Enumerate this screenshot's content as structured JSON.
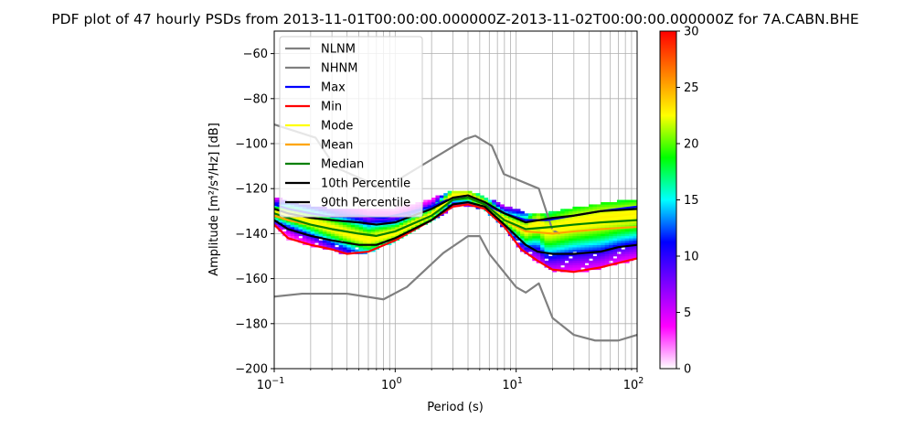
{
  "chart_data": {
    "type": "line",
    "title": "PDF plot of 47 hourly PSDs from 2013-11-01T00:00:00.000000Z-2013-11-02T00:00:00.000000Z for 7A.CABN.BHE",
    "xlabel": "Period (s)",
    "ylabel": "Amplitude [m²/s⁴/Hz] [dB]",
    "xscale": "log",
    "xlim": [
      0.1,
      100
    ],
    "ylim": [
      -200,
      -50
    ],
    "xticks": [
      {
        "value": 0.1,
        "base": "10",
        "exp": "−1"
      },
      {
        "value": 1,
        "base": "10",
        "exp": "0"
      },
      {
        "value": 10,
        "base": "10",
        "exp": "1"
      },
      {
        "value": 100,
        "base": "10",
        "exp": "2"
      }
    ],
    "yticks": [
      -60,
      -80,
      -100,
      -120,
      -140,
      -160,
      -180,
      -200
    ],
    "grid": true,
    "legend_position": "top-left",
    "colorbar": {
      "min": 0,
      "max": 30,
      "ticks": [
        0,
        5,
        10,
        15,
        20,
        25,
        30
      ],
      "colors": [
        "#ffffff",
        "#ff00ff",
        "#8000ff",
        "#0000ff",
        "#00ffff",
        "#00ff00",
        "#ffff00",
        "#ff8000",
        "#ff0000"
      ]
    },
    "series": [
      {
        "name": "NLNM",
        "color": "#808080",
        "x": [
          0.1,
          0.17,
          0.4,
          0.8,
          1.25,
          2.5,
          4.0,
          5.0,
          6.0,
          10,
          12,
          15.4,
          20,
          30,
          45,
          70,
          100
        ],
        "y": [
          -168,
          -166.7,
          -166.7,
          -169.2,
          -163.7,
          -148.6,
          -141.1,
          -141.1,
          -149.0,
          -163.8,
          -166.2,
          -162.1,
          -177.5,
          -185.0,
          -187.5,
          -187.5,
          -185.0
        ]
      },
      {
        "name": "NHNM",
        "color": "#808080",
        "x": [
          0.1,
          0.22,
          0.32,
          0.8,
          3.8,
          4.6,
          6.3,
          7.9,
          15.4,
          20,
          23
        ],
        "y": [
          -91.5,
          -97.4,
          -110.5,
          -120.0,
          -98.0,
          -96.5,
          -101.0,
          -113.5,
          -120.0,
          -138.5,
          -140.0
        ]
      },
      {
        "name": "Max",
        "color": "#0000ff",
        "x": [
          0.1,
          0.13,
          0.2,
          0.3,
          0.5,
          0.8,
          1.2,
          2.0,
          3.0,
          4.0,
          5.5,
          8,
          12,
          18,
          30,
          50,
          100
        ],
        "y": [
          -127,
          -129,
          -131,
          -132.5,
          -132,
          -133,
          -131,
          -128,
          -124,
          -124,
          -127,
          -131,
          -134,
          -134,
          -132,
          -130,
          -128
        ]
      },
      {
        "name": "Min",
        "color": "#ff0000",
        "x": [
          0.1,
          0.13,
          0.2,
          0.3,
          0.4,
          0.6,
          1.0,
          2.0,
          3.0,
          4.0,
          5.5,
          8,
          11,
          15,
          20,
          30,
          50,
          70,
          100
        ],
        "y": [
          -136,
          -142,
          -145,
          -147,
          -149,
          -148,
          -143,
          -134,
          -128,
          -127,
          -129,
          -137,
          -147,
          -152,
          -156,
          -157,
          -155,
          -153,
          -151
        ]
      },
      {
        "name": "Mode",
        "color": "#ffff00",
        "x": [
          0.1,
          0.13,
          0.2,
          0.3,
          0.45,
          0.6,
          1.0,
          2.0,
          3.0,
          4.0,
          5.5,
          8,
          12,
          15,
          18,
          30,
          50,
          100
        ],
        "y": [
          -131,
          -132,
          -135,
          -138,
          -141,
          -143,
          -140,
          -132,
          -123,
          -123,
          -127,
          -134,
          -139,
          -136,
          -139,
          -136,
          -134,
          -132
        ]
      },
      {
        "name": "Mean",
        "color": "#ffa500",
        "x": [
          0.1,
          0.13,
          0.2,
          0.3,
          0.5,
          0.7,
          1.0,
          2.0,
          3.0,
          4.0,
          5.5,
          8,
          12,
          20,
          30,
          50,
          100
        ],
        "y": [
          -132,
          -134,
          -136,
          -138,
          -140,
          -141,
          -139,
          -132,
          -125,
          -124,
          -127,
          -134,
          -139,
          -140,
          -139,
          -138,
          -137
        ]
      },
      {
        "name": "Median",
        "color": "#008000",
        "x": [
          0.1,
          0.13,
          0.2,
          0.3,
          0.5,
          0.7,
          1.0,
          2.0,
          3.0,
          4.0,
          5.5,
          8,
          12,
          20,
          30,
          50,
          100
        ],
        "y": [
          -131,
          -133,
          -136,
          -138,
          -140,
          -141,
          -139,
          -132,
          -125,
          -124,
          -127,
          -134,
          -138,
          -137,
          -136,
          -135,
          -134
        ]
      },
      {
        "name": "10th Percentile",
        "color": "#000000",
        "x": [
          0.1,
          0.13,
          0.2,
          0.3,
          0.5,
          0.7,
          1.0,
          2.0,
          3.0,
          4.0,
          5.5,
          8,
          12,
          15,
          20,
          30,
          50,
          70,
          100
        ],
        "y": [
          -134,
          -138,
          -141,
          -143,
          -145,
          -145,
          -142,
          -134,
          -127,
          -126,
          -128,
          -136,
          -145,
          -148,
          -149,
          -149,
          -148,
          -146,
          -145
        ]
      },
      {
        "name": "90th Percentile",
        "color": "#000000",
        "x": [
          0.1,
          0.13,
          0.2,
          0.3,
          0.5,
          0.7,
          1.0,
          2.0,
          3.0,
          4.0,
          5.5,
          8,
          12,
          20,
          30,
          50,
          100
        ],
        "y": [
          -129,
          -131,
          -133,
          -134,
          -135,
          -136,
          -135,
          -129,
          -124,
          -123,
          -126,
          -131,
          -135,
          -133,
          -132,
          -130,
          -129
        ]
      }
    ]
  }
}
